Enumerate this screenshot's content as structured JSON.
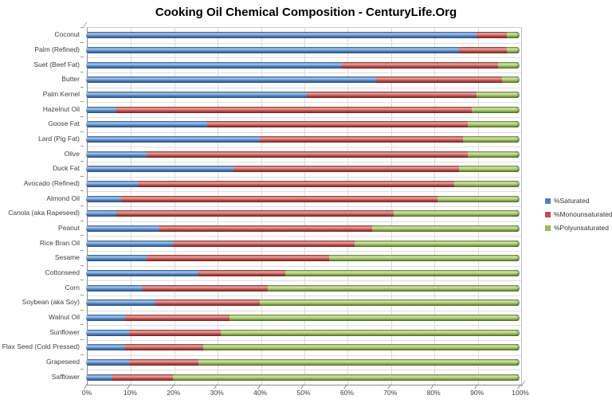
{
  "title": "Cooking Oil Chemical Composition - CenturyLife.Org",
  "legend": [
    {
      "label": "%Saturated",
      "color": "#4F81BD"
    },
    {
      "label": "%Monounsaturated",
      "color": "#C0504D"
    },
    {
      "label": "%Polyunsaturated",
      "color": "#9BBB59"
    }
  ],
  "colors": {
    "saturated": "#4F81BD",
    "monounsaturated": "#C0504D",
    "polyunsaturated": "#9BBB59",
    "gridline": "#D9D9D9",
    "axis": "#8C8C8C",
    "text": "#3F3F3F",
    "background": "#FFFFFF"
  },
  "chart_data": {
    "type": "bar",
    "orientation": "horizontal",
    "stacked": true,
    "title": "Cooking Oil Chemical Composition - CenturyLife.Org",
    "xlabel": "",
    "ylabel": "",
    "xlim": [
      0,
      100
    ],
    "x_ticks": [
      "0%",
      "10%",
      "20%",
      "30%",
      "40%",
      "50%",
      "60%",
      "70%",
      "80%",
      "90%",
      "100%"
    ],
    "grid": true,
    "legend_position": "right",
    "categories": [
      "Coconut",
      "Palm (Refined)",
      "Suet (Beef Fat)",
      "Butter",
      "Palm Kernel",
      "Hazelnut Oil",
      "Goose Fat",
      "Lard (Pig Fat)",
      "Olive",
      "Duck Fat",
      "Avocado (Refined)",
      "Almond Oil",
      "Canola (aka Rapeseed)",
      "Peanut",
      "Rice Bran Oil",
      "Sesame",
      "Cottonseed",
      "Corn",
      "Soybean (aka Soy)",
      "Walnut Oil",
      "Sunflower",
      "Flax Seed (Cold Pressed)",
      "Grapeseed",
      "Safflower"
    ],
    "series": [
      {
        "name": "%Saturated",
        "color": "#4F81BD",
        "values": [
          90,
          86,
          59,
          67,
          51,
          7,
          28,
          40,
          14,
          34,
          12,
          8,
          7,
          17,
          20,
          14,
          26,
          13,
          16,
          9,
          10,
          9,
          10,
          6
        ]
      },
      {
        "name": "%Monounsaturated",
        "color": "#C0504D",
        "values": [
          7,
          11,
          36,
          29,
          39,
          82,
          60,
          47,
          74,
          52,
          73,
          73,
          64,
          49,
          42,
          42,
          20,
          29,
          24,
          24,
          21,
          18,
          16,
          14
        ]
      },
      {
        "name": "%Polyunsaturated",
        "color": "#9BBB59",
        "values": [
          3,
          3,
          5,
          4,
          10,
          11,
          12,
          13,
          12,
          14,
          15,
          19,
          29,
          34,
          38,
          44,
          54,
          58,
          60,
          67,
          69,
          73,
          74,
          80
        ]
      }
    ]
  }
}
